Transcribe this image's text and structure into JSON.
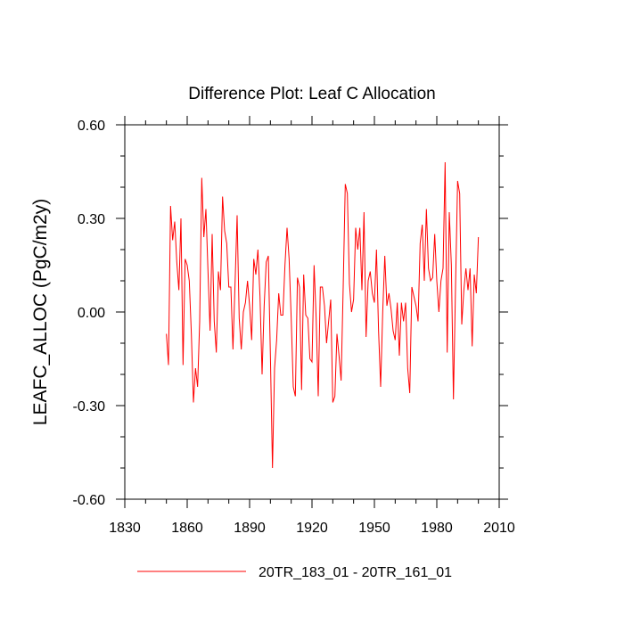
{
  "chart_data": {
    "type": "line",
    "title": "Difference Plot: Leaf C Allocation",
    "xlabel": "",
    "ylabel": "LEAFC_ALLOC  (PgC/m2y)",
    "xlim": [
      1830,
      2010
    ],
    "ylim": [
      -0.6,
      0.6
    ],
    "xticks": [
      1830,
      1860,
      1890,
      1920,
      1950,
      1980,
      2010
    ],
    "xtick_labels": [
      "1830",
      "1860",
      "1890",
      "1920",
      "1950",
      "1980",
      "2010"
    ],
    "yticks": [
      -0.6,
      -0.3,
      0.0,
      0.3,
      0.6
    ],
    "ytick_labels": [
      "-0.60",
      "-0.30",
      "0.00",
      "0.30",
      "0.60"
    ],
    "grid": false,
    "legend_position": "bottom",
    "series": [
      {
        "name": "20TR_183_01 - 20TR_161_01",
        "color": "#ff0000",
        "x_start": 1850,
        "x_step": 1,
        "values": [
          -0.07,
          -0.17,
          0.34,
          0.23,
          0.29,
          0.16,
          0.07,
          0.3,
          -0.17,
          0.17,
          0.15,
          0.1,
          -0.07,
          -0.29,
          -0.18,
          -0.24,
          -0.03,
          0.43,
          0.24,
          0.33,
          0.13,
          -0.06,
          0.25,
          -0.03,
          -0.13,
          0.13,
          0.07,
          0.37,
          0.26,
          0.22,
          0.08,
          0.08,
          -0.12,
          0.09,
          0.31,
          -0.02,
          -0.12,
          0.0,
          0.03,
          0.1,
          0.02,
          -0.09,
          0.17,
          0.12,
          0.2,
          0.05,
          -0.2,
          0.02,
          0.16,
          0.18,
          -0.14,
          -0.5,
          -0.18,
          -0.09,
          0.06,
          -0.01,
          -0.01,
          0.15,
          0.27,
          0.17,
          -0.02,
          -0.24,
          -0.27,
          0.11,
          0.08,
          -0.25,
          0.12,
          -0.01,
          -0.02,
          -0.15,
          -0.16,
          0.15,
          -0.02,
          -0.27,
          0.08,
          0.08,
          0.02,
          -0.1,
          -0.03,
          0.04,
          -0.29,
          -0.27,
          -0.07,
          -0.14,
          -0.22,
          0.08,
          0.41,
          0.38,
          0.09,
          0.0,
          0.04,
          0.27,
          0.2,
          0.27,
          0.07,
          0.32,
          -0.08,
          0.1,
          0.13,
          0.06,
          0.03,
          0.2,
          -0.06,
          -0.24,
          0.0,
          0.18,
          0.02,
          0.06,
          0.01,
          -0.06,
          -0.09,
          0.03,
          -0.14,
          0.03,
          -0.03,
          0.03,
          -0.18,
          -0.26,
          0.08,
          0.05,
          0.02,
          -0.03,
          0.22,
          0.28,
          0.1,
          0.33,
          0.14,
          0.1,
          0.11,
          0.25,
          0.1,
          0.0,
          0.1,
          0.14,
          0.48,
          -0.13,
          0.32,
          0.15,
          -0.28,
          0.08,
          0.42,
          0.38,
          -0.04,
          0.07,
          0.14,
          0.07,
          0.14,
          -0.11,
          0.12,
          0.06,
          0.24
        ]
      }
    ]
  }
}
